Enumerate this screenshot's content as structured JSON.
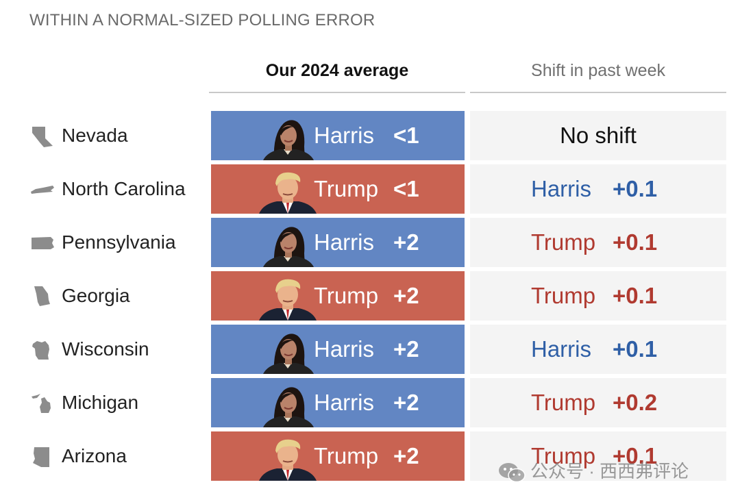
{
  "kicker": "WITHIN A NORMAL-SIZED POLLING ERROR",
  "headers": {
    "average": "Our 2024 average",
    "shift": "Shift in past week"
  },
  "colors": {
    "harris_bg": "#6286c3",
    "trump_bg": "#c96352",
    "harris_text": "#2f5fa6",
    "trump_text": "#b03a30",
    "shift_bg": "#f4f4f4"
  },
  "rows": [
    {
      "state": "Nevada",
      "icon": "nevada-shape-icon",
      "avg_candidate": "Harris",
      "avg_margin": "<1",
      "shift_text": "No shift",
      "shift_candidate": "",
      "shift_value": ""
    },
    {
      "state": "North Carolina",
      "icon": "north-carolina-shape-icon",
      "avg_candidate": "Trump",
      "avg_margin": "<1",
      "shift_text": "",
      "shift_candidate": "Harris",
      "shift_value": "+0.1"
    },
    {
      "state": "Pennsylvania",
      "icon": "pennsylvania-shape-icon",
      "avg_candidate": "Harris",
      "avg_margin": "+2",
      "shift_text": "",
      "shift_candidate": "Trump",
      "shift_value": "+0.1"
    },
    {
      "state": "Georgia",
      "icon": "georgia-shape-icon",
      "avg_candidate": "Trump",
      "avg_margin": "+2",
      "shift_text": "",
      "shift_candidate": "Trump",
      "shift_value": "+0.1"
    },
    {
      "state": "Wisconsin",
      "icon": "wisconsin-shape-icon",
      "avg_candidate": "Harris",
      "avg_margin": "+2",
      "shift_text": "",
      "shift_candidate": "Harris",
      "shift_value": "+0.1"
    },
    {
      "state": "Michigan",
      "icon": "michigan-shape-icon",
      "avg_candidate": "Harris",
      "avg_margin": "+2",
      "shift_text": "",
      "shift_candidate": "Trump",
      "shift_value": "+0.2"
    },
    {
      "state": "Arizona",
      "icon": "arizona-shape-icon",
      "avg_candidate": "Trump",
      "avg_margin": "+2",
      "shift_text": "",
      "shift_candidate": "Trump",
      "shift_value": "+0.1"
    }
  ],
  "chart_data": {
    "type": "table",
    "columns": [
      "Our 2024 average",
      "Shift in past week"
    ],
    "rows": [
      {
        "state": "Nevada",
        "average": {
          "candidate": "Harris",
          "margin": "<1"
        },
        "shift": "No shift"
      },
      {
        "state": "North Carolina",
        "average": {
          "candidate": "Trump",
          "margin": "<1"
        },
        "shift": {
          "candidate": "Harris",
          "value": 0.1
        }
      },
      {
        "state": "Pennsylvania",
        "average": {
          "candidate": "Harris",
          "margin": 2
        },
        "shift": {
          "candidate": "Trump",
          "value": 0.1
        }
      },
      {
        "state": "Georgia",
        "average": {
          "candidate": "Trump",
          "margin": 2
        },
        "shift": {
          "candidate": "Trump",
          "value": 0.1
        }
      },
      {
        "state": "Wisconsin",
        "average": {
          "candidate": "Harris",
          "margin": 2
        },
        "shift": {
          "candidate": "Harris",
          "value": 0.1
        }
      },
      {
        "state": "Michigan",
        "average": {
          "candidate": "Harris",
          "margin": 2
        },
        "shift": {
          "candidate": "Trump",
          "value": 0.2
        }
      },
      {
        "state": "Arizona",
        "average": {
          "candidate": "Trump",
          "margin": 2
        },
        "shift": {
          "candidate": "Trump",
          "value": 0.1
        }
      }
    ]
  },
  "watermark": {
    "text": "公众号 · 西西弗评论",
    "icon": "wechat-icon"
  }
}
